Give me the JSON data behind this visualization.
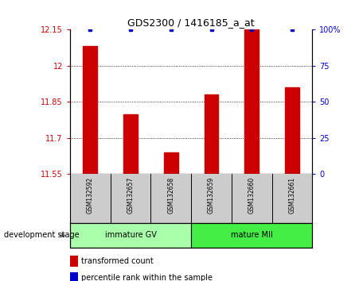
{
  "title": "GDS2300 / 1416185_a_at",
  "samples": [
    "GSM132592",
    "GSM132657",
    "GSM132658",
    "GSM132659",
    "GSM132660",
    "GSM132661"
  ],
  "bar_values": [
    12.08,
    11.8,
    11.64,
    11.88,
    12.15,
    11.91
  ],
  "percentile_values": [
    100,
    100,
    100,
    100,
    100,
    100
  ],
  "ylim_left": [
    11.55,
    12.15
  ],
  "ylim_right": [
    0,
    100
  ],
  "yticks_left": [
    11.55,
    11.7,
    11.85,
    12.0,
    12.15
  ],
  "ytick_labels_left": [
    "11.55",
    "11.7",
    "11.85",
    "12",
    "12.15"
  ],
  "yticks_right": [
    0,
    25,
    50,
    75,
    100
  ],
  "ytick_labels_right": [
    "0",
    "25",
    "50",
    "75",
    "100%"
  ],
  "bar_color": "#cc0000",
  "percentile_color": "#0000cc",
  "groups": [
    {
      "label": "immature GV",
      "sample_indices": [
        0,
        1,
        2
      ],
      "color": "#aaffaa"
    },
    {
      "label": "mature MII",
      "sample_indices": [
        3,
        4,
        5
      ],
      "color": "#44ee44"
    }
  ],
  "dev_stage_label": "development stage",
  "legend_items": [
    {
      "color": "#cc0000",
      "label": "transformed count"
    },
    {
      "color": "#0000cc",
      "label": "percentile rank within the sample"
    }
  ],
  "left_axis_color": "#cc0000",
  "right_axis_color": "#0000cc",
  "sample_area_bg": "#cccccc",
  "title_fontsize": 9,
  "tick_fontsize": 7,
  "legend_fontsize": 7,
  "bar_width": 0.35
}
